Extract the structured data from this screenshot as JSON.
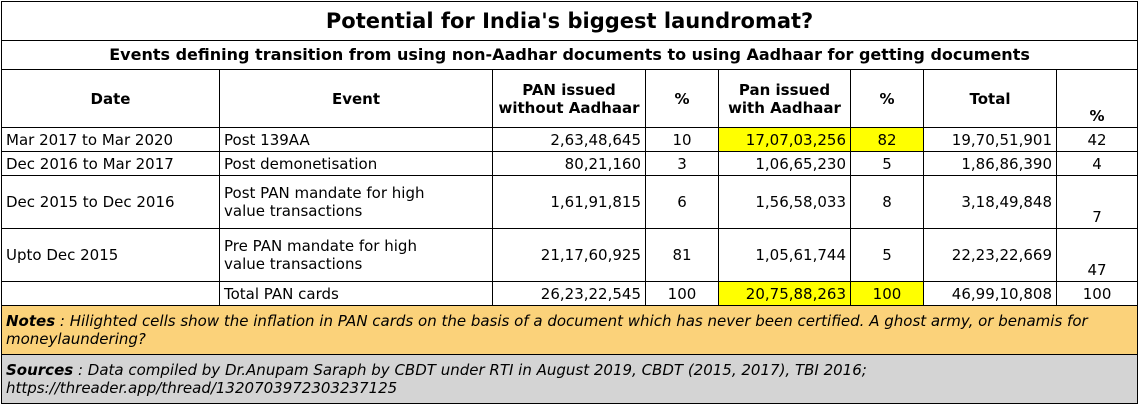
{
  "title": "Potential for India's biggest laundromat?",
  "subtitle": "Events defining transition from using non-Aadhar documents to using Aadhaar for getting documents",
  "headers": {
    "date": "Date",
    "event": "Event",
    "pan_without_line1": "PAN issued",
    "pan_without_line2": "without Aadhaar",
    "pct1": "%",
    "pan_with_line1": "Pan issued",
    "pan_with_line2": "with Aadhaar",
    "pct2": "%",
    "total": "Total",
    "pct3": "%"
  },
  "rows": [
    {
      "date": "Mar 2017 to Mar 2020",
      "event": "Post 139AA",
      "without": "2,63,48,645",
      "pct_without": "10",
      "with": "17,07,03,256",
      "pct_with": "82",
      "total": "19,70,51,901",
      "pct_total": "42"
    },
    {
      "date": "Dec 2016 to Mar 2017",
      "event": "Post demonetisation",
      "without": "80,21,160",
      "pct_without": "3",
      "with": "1,06,65,230",
      "pct_with": "5",
      "total": "1,86,86,390",
      "pct_total": "4"
    },
    {
      "date": "Dec 2015 to Dec 2016",
      "event_line1": "Post PAN mandate for high",
      "event_line2": "value transactions",
      "without": "1,61,91,815",
      "pct_without": "6",
      "with": "1,56,58,033",
      "pct_with": "8",
      "total": "3,18,49,848",
      "pct_total": "7"
    },
    {
      "date": "Upto Dec 2015",
      "event_line1": "Pre PAN mandate for high",
      "event_line2": "value transactions",
      "without": "21,17,60,925",
      "pct_without": "81",
      "with": "1,05,61,744",
      "pct_with": "5",
      "total": "22,23,22,669",
      "pct_total": "47"
    }
  ],
  "totals": {
    "event": "Total PAN cards",
    "without": "26,23,22,545",
    "pct_without": "100",
    "with": "20,75,88,263",
    "pct_with": "100",
    "total": "46,99,10,808",
    "pct_total": "100"
  },
  "notes": {
    "label": "Notes",
    "text": " : Hilighted cells show the inflation in PAN cards on the basis of a document which has never been certified.  A ghost army, or benamis for moneylaundering?"
  },
  "sources": {
    "label": "Sources",
    "text": " : Data compiled by Dr.Anupam Saraph by CBDT under RTI in August 2019, CBDT (2015, 2017), TBI 2016; https://threader.app/thread/1320703972303237125"
  },
  "colors": {
    "highlight": "#ffff00",
    "notes_bg": "#fbd27a",
    "sources_bg": "#d4d4d4"
  }
}
